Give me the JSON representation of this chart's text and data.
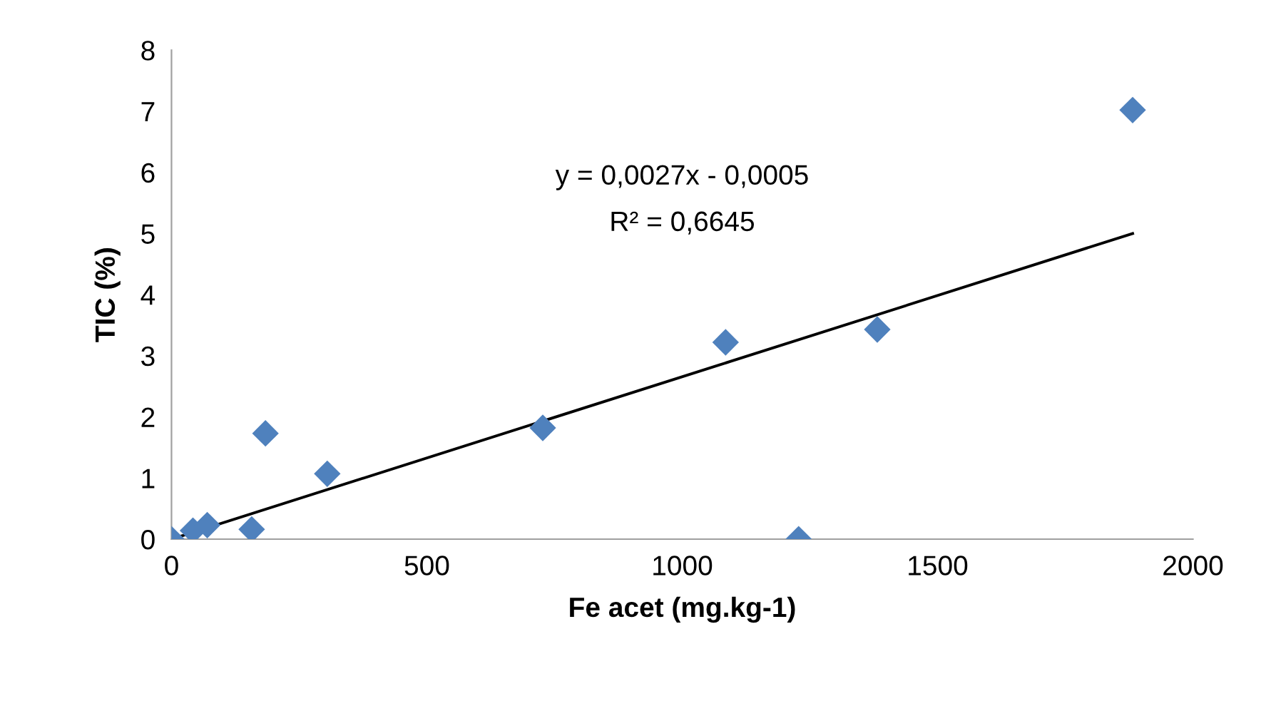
{
  "chart_data": {
    "type": "scatter",
    "xlabel": "Fe acet (mg.kg-1)",
    "ylabel": "TIC (%)",
    "grid": false,
    "xlim": [
      0,
      2000
    ],
    "ylim": [
      0,
      8
    ],
    "xticks": [
      0,
      500,
      1000,
      1500,
      2000
    ],
    "yticks": [
      0,
      1,
      2,
      3,
      4,
      5,
      6,
      7,
      8
    ],
    "annotations": [
      "y = 0,0027x - 0,0005",
      "R² = 0,6645"
    ],
    "series": [
      {
        "marker": "diamond",
        "color": "#4f81bd",
        "x": [
          0,
          42,
          70,
          157,
          184,
          305,
          727,
          1085,
          1228,
          1382,
          1882
        ],
        "values": [
          0,
          0.14,
          0.23,
          0.16,
          1.73,
          1.07,
          1.82,
          3.22,
          0,
          3.43,
          7.02
        ]
      },
      {
        "type": "line",
        "color": "#000000",
        "x": [
          0,
          1882
        ],
        "values": [
          0,
          5.0
        ]
      }
    ]
  }
}
